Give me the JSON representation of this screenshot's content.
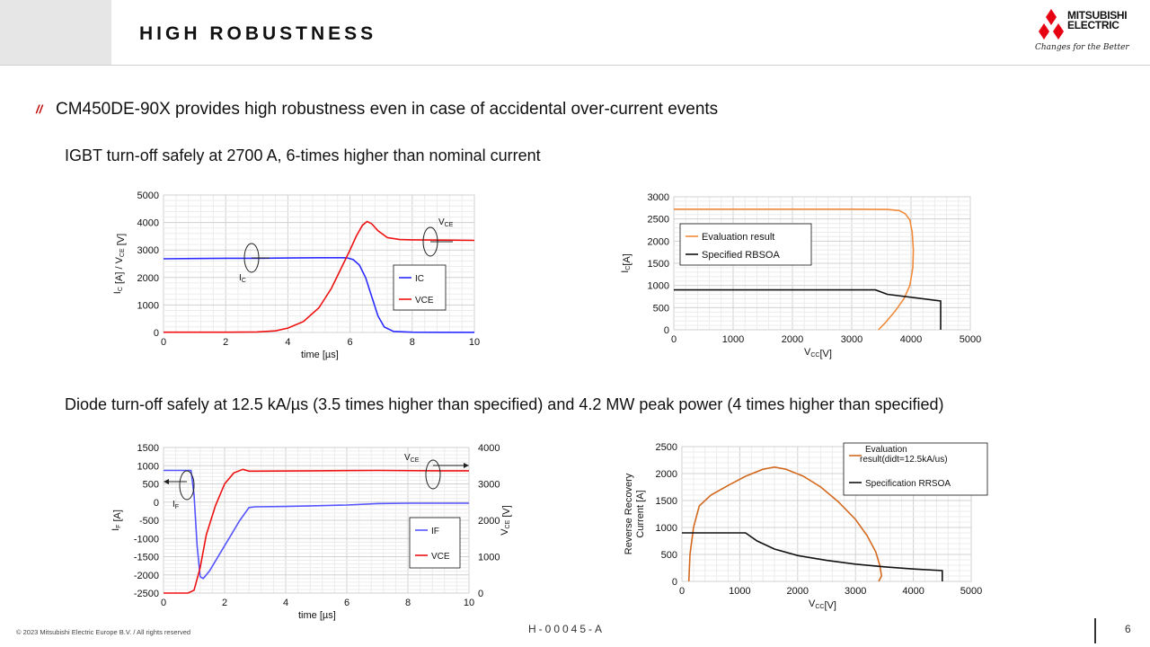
{
  "header": {
    "title": "HIGH ROBUSTNESS",
    "logo_line1": "MITSUBISHI",
    "logo_line2": "ELECTRIC",
    "tagline": "Changes for the Better",
    "brand_color": "#e60012"
  },
  "content": {
    "bullet_mark": "//",
    "headline": "CM450DE-90X provides high robustness even in case of accidental over-current events",
    "sub1": "IGBT turn-off safely at 2700 A, 6-times higher than nominal current",
    "sub2": "Diode turn-off safely at 12.5 kA/µs (3.5 times higher than specified) and 4.2 MW peak power (4 times higher than specified)"
  },
  "footer": {
    "copyright": "© 2023 Mitsubishi Electric Europe B.V. / All rights reserved",
    "code": "H-00045-A",
    "page": "6"
  },
  "chart_data": [
    {
      "id": "igbt-turnoff",
      "type": "line",
      "xlabel": "time [µs]",
      "ylabel": "I_C [A] / V_CE [V]",
      "xlim": [
        0,
        10
      ],
      "ylim": [
        0,
        5000
      ],
      "xticks": [
        "0",
        "2",
        "4",
        "6",
        "8",
        "10"
      ],
      "yticks": [
        "0",
        "1000",
        "2000",
        "3000",
        "4000",
        "5000"
      ],
      "grid": true,
      "legend": "right",
      "annotations": [
        "V_CE",
        "I_C"
      ],
      "series": [
        {
          "name": "IC",
          "color": "#2b2bff",
          "x": [
            0,
            1,
            2,
            3,
            4,
            5,
            5.6,
            5.9,
            6.1,
            6.3,
            6.5,
            6.7,
            6.9,
            7.1,
            7.4,
            8,
            9,
            10
          ],
          "y": [
            2680,
            2690,
            2700,
            2700,
            2710,
            2720,
            2720,
            2715,
            2650,
            2450,
            2000,
            1300,
            600,
            200,
            40,
            10,
            5,
            5
          ]
        },
        {
          "name": "VCE",
          "color": "#ee1111",
          "x": [
            0,
            1,
            2,
            3,
            3.6,
            4,
            4.5,
            5,
            5.4,
            5.7,
            6,
            6.2,
            6.4,
            6.55,
            6.7,
            6.9,
            7.2,
            7.6,
            8,
            9,
            10
          ],
          "y": [
            10,
            10,
            10,
            20,
            60,
            160,
            400,
            900,
            1600,
            2300,
            3000,
            3500,
            3900,
            4040,
            3950,
            3700,
            3450,
            3380,
            3370,
            3360,
            3350
          ]
        }
      ]
    },
    {
      "id": "igbt-rbsoa",
      "type": "line",
      "xlabel": "V_CC[V]",
      "ylabel": "I_C[A]",
      "xlim": [
        0,
        5000
      ],
      "ylim": [
        0,
        3000
      ],
      "xticks": [
        "0",
        "1000",
        "2000",
        "3000",
        "4000",
        "5000"
      ],
      "yticks": [
        "0",
        "500",
        "1000",
        "1500",
        "2000",
        "2500",
        "3000"
      ],
      "grid": true,
      "legend": "top-left",
      "series": [
        {
          "name": "Evaluation result",
          "color": "#f08a3a",
          "x": [
            0,
            1000,
            2000,
            3000,
            3600,
            3800,
            3900,
            3980,
            4020,
            4040,
            4030,
            3980,
            3880,
            3720,
            3560,
            3450
          ],
          "y": [
            2720,
            2720,
            2720,
            2720,
            2715,
            2690,
            2620,
            2480,
            2200,
            1800,
            1400,
            1000,
            700,
            400,
            150,
            0
          ]
        },
        {
          "name": "Specified RBSOA",
          "color": "#111111",
          "x": [
            0,
            3400,
            3600,
            4500,
            4500
          ],
          "y": [
            900,
            900,
            800,
            650,
            0
          ]
        }
      ]
    },
    {
      "id": "diode-turnoff",
      "type": "line",
      "xlabel": "time [µs]",
      "ylabel": "I_F [A]",
      "ylabel_right": "V_CE [V]",
      "xlim": [
        0,
        10
      ],
      "ylim": [
        -2500,
        1500
      ],
      "ylim_right": [
        0,
        4000
      ],
      "xticks": [
        "0",
        "2",
        "4",
        "6",
        "8",
        "10"
      ],
      "yticks": [
        "-2500",
        "-2000",
        "-1500",
        "-1000",
        "-500",
        "0",
        "500",
        "1000",
        "1500"
      ],
      "yticks_right": [
        "0",
        "1000",
        "2000",
        "3000",
        "4000"
      ],
      "grid": true,
      "legend": "bottom-right",
      "annotations": [
        "V_CE",
        "I_F"
      ],
      "series": [
        {
          "name": "IF",
          "color": "#5555ff",
          "axis": "left",
          "x": [
            0,
            0.9,
            1.0,
            1.1,
            1.2,
            1.3,
            1.5,
            2,
            2.5,
            2.8,
            3,
            4,
            5,
            6,
            7,
            8,
            9,
            10
          ],
          "y": [
            870,
            870,
            200,
            -1200,
            -2050,
            -2100,
            -1900,
            -1200,
            -500,
            -150,
            -130,
            -120,
            -100,
            -80,
            -40,
            -30,
            -30,
            -30
          ]
        },
        {
          "name": "VCE",
          "color": "#ee1111",
          "axis": "right",
          "x": [
            0,
            0.8,
            1.0,
            1.2,
            1.4,
            1.7,
            2,
            2.3,
            2.6,
            2.8,
            3,
            5,
            7,
            9,
            10
          ],
          "y": [
            0,
            0,
            80,
            700,
            1600,
            2400,
            3000,
            3300,
            3400,
            3350,
            3350,
            3360,
            3370,
            3360,
            3360
          ]
        }
      ]
    },
    {
      "id": "diode-rrsoa",
      "type": "line",
      "xlabel": "V_CC[V]",
      "ylabel": "Reverse Recovery Current [A]",
      "xlim": [
        0,
        5000
      ],
      "ylim": [
        0,
        2500
      ],
      "xticks": [
        "0",
        "1000",
        "2000",
        "3000",
        "4000",
        "5000"
      ],
      "yticks": [
        "0",
        "500",
        "1000",
        "1500",
        "2000",
        "2500"
      ],
      "grid": true,
      "legend": "top-right",
      "series": [
        {
          "name": "Evaluation result(didt=12.5kA/us)",
          "color": "#d2691e",
          "x": [
            120,
            140,
            200,
            300,
            500,
            800,
            1100,
            1400,
            1600,
            1800,
            2100,
            2400,
            2700,
            3000,
            3200,
            3350,
            3420,
            3450,
            3400
          ],
          "y": [
            0,
            500,
            1000,
            1400,
            1600,
            1780,
            1950,
            2080,
            2120,
            2080,
            1950,
            1750,
            1480,
            1150,
            850,
            550,
            300,
            100,
            0
          ]
        },
        {
          "name": "Specification RRSOA",
          "color": "#111111",
          "x": [
            0,
            1100,
            1300,
            1600,
            2000,
            2500,
            3000,
            3500,
            4000,
            4500,
            4500
          ],
          "y": [
            900,
            900,
            750,
            600,
            480,
            390,
            320,
            270,
            230,
            200,
            0
          ]
        }
      ]
    }
  ]
}
